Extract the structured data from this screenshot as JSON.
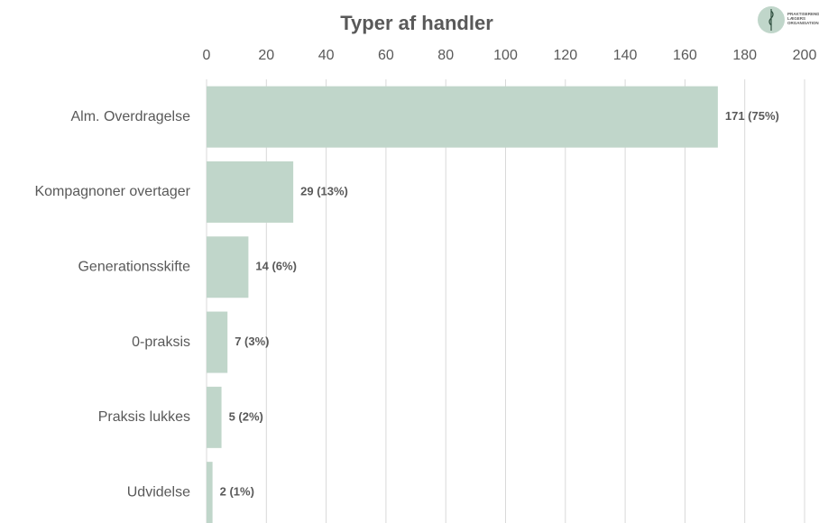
{
  "chart_data": {
    "type": "bar",
    "orientation": "horizontal",
    "title": "Typer af handler",
    "categories": [
      "Alm. Overdragelse",
      "Kompagnoner overtager",
      "Generationsskifte",
      "0-praksis",
      "Praksis lukkes",
      "Udvidelse"
    ],
    "values": [
      171,
      29,
      14,
      7,
      5,
      2
    ],
    "value_labels": [
      "171 (75%)",
      "29 (13%)",
      "14 (6%)",
      "7 (3%)",
      "5 (2%)",
      "2 (1%)"
    ],
    "color": "#c0d6ca",
    "xlim": [
      0,
      200
    ],
    "xticks": [
      0,
      20,
      40,
      60,
      80,
      100,
      120,
      140,
      160,
      180,
      200
    ],
    "grid": true,
    "logo_text": [
      "PRAKTISERENDE",
      "LÆGERS",
      "ORGANISATION"
    ]
  }
}
